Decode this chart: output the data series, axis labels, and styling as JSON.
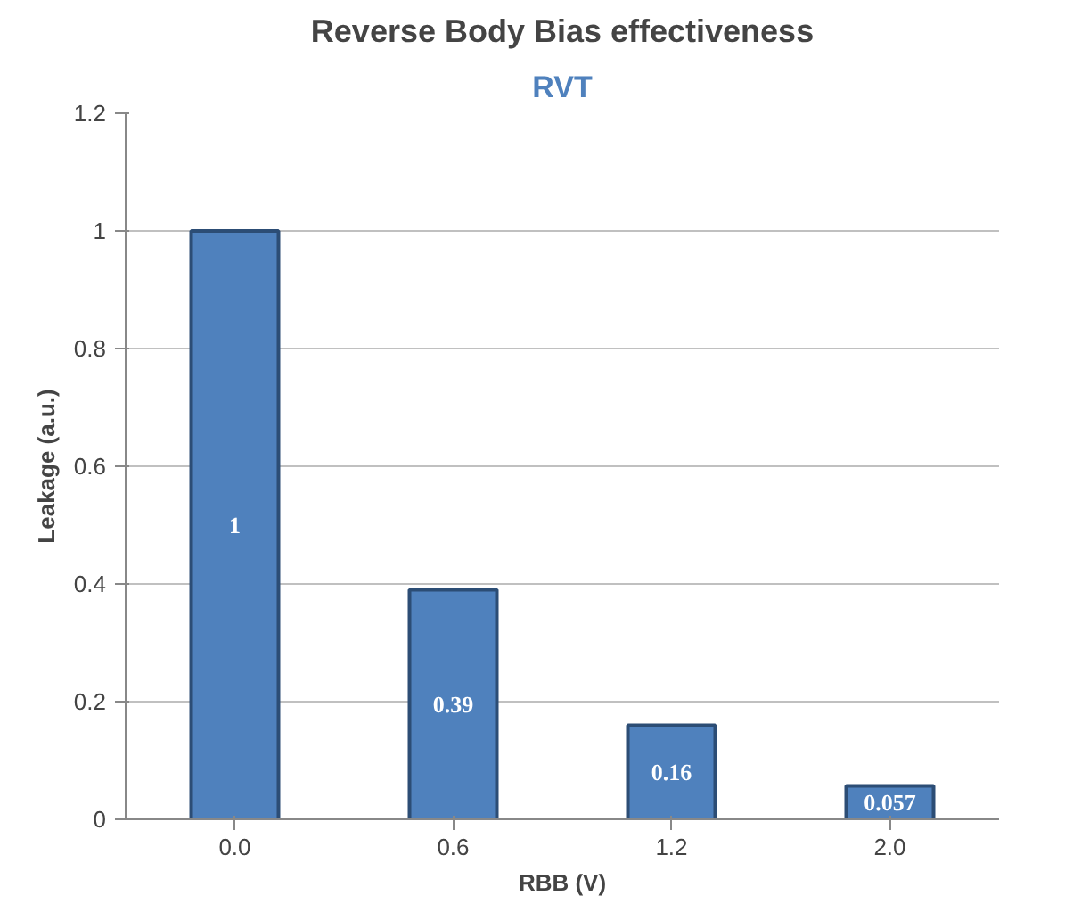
{
  "chart_data": {
    "type": "bar",
    "title": "Reverse Body Bias effectiveness",
    "subtitle": "RVT",
    "xlabel": "RBB (V)",
    "ylabel": "Leakage (a.u.)",
    "categories": [
      "0.0",
      "0.6",
      "1.2",
      "2.0"
    ],
    "values": [
      1,
      0.39,
      0.16,
      0.057
    ],
    "color": "#4f81bd",
    "ylim": [
      0,
      1.2
    ],
    "yticks": [
      0,
      0.2,
      0.4,
      0.6,
      0.8,
      1,
      1.2
    ],
    "grid": "y",
    "data_labels": true
  }
}
